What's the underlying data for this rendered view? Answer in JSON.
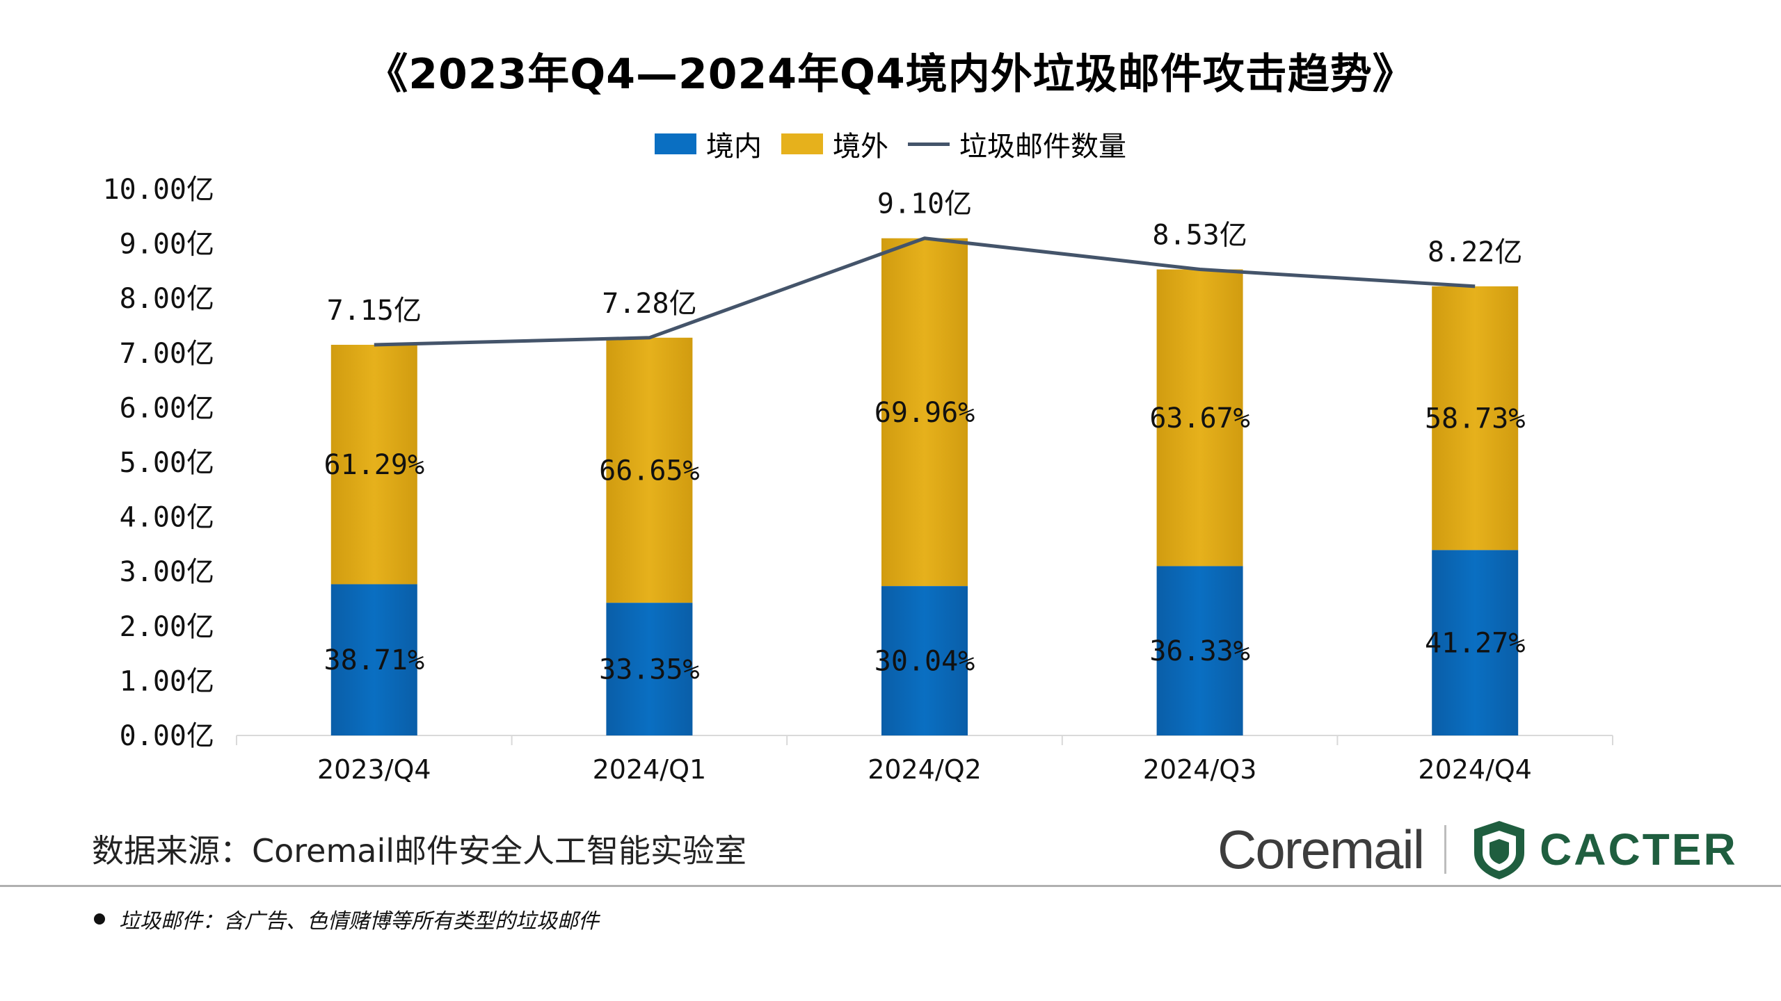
{
  "title": "《2023年Q4—2024年Q4境内外垃圾邮件攻击趋势》",
  "legend": {
    "domestic": "境内",
    "foreign": "境外",
    "total": "垃圾邮件数量"
  },
  "colors": {
    "domestic": "#0a6fc2",
    "foreign": "#e6b11c",
    "line": "#44546a",
    "axis": "#d9d9d9"
  },
  "chart_data": {
    "type": "bar",
    "stacked": true,
    "title": "《2023年Q4—2024年Q4境内外垃圾邮件攻击趋势》",
    "categories": [
      "2023/Q4",
      "2024/Q1",
      "2024/Q2",
      "2024/Q3",
      "2024/Q4"
    ],
    "yticks": [
      "0.00亿",
      "1.00亿",
      "2.00亿",
      "3.00亿",
      "4.00亿",
      "5.00亿",
      "6.00亿",
      "7.00亿",
      "8.00亿",
      "9.00亿",
      "10.00亿"
    ],
    "ylim": [
      0,
      10
    ],
    "series": [
      {
        "name": "境内",
        "type": "bar",
        "percent": [
          38.71,
          33.35,
          30.04,
          36.33,
          41.27
        ],
        "labels": [
          "38.71%",
          "33.35%",
          "30.04%",
          "36.33%",
          "41.27%"
        ]
      },
      {
        "name": "境外",
        "type": "bar",
        "percent": [
          61.29,
          66.65,
          69.96,
          63.67,
          58.73
        ],
        "labels": [
          "61.29%",
          "66.65%",
          "69.96%",
          "63.67%",
          "58.73%"
        ]
      },
      {
        "name": "垃圾邮件数量",
        "type": "line",
        "values": [
          7.15,
          7.28,
          9.1,
          8.53,
          8.22
        ],
        "labels": [
          "7.15亿",
          "7.28亿",
          "9.10亿",
          "8.53亿",
          "8.22亿"
        ]
      }
    ]
  },
  "source": "数据来源：Coremail邮件安全人工智能实验室",
  "logos": {
    "coremail": "Coremail",
    "cacter": "CACTER"
  },
  "footnote": "垃圾邮件：含广告、色情赌博等所有类型的垃圾邮件"
}
